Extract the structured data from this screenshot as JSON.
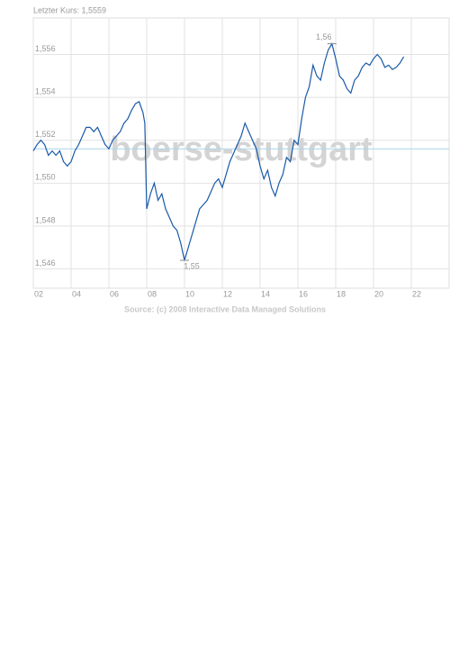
{
  "chart_data": {
    "type": "line",
    "subtitle": "Letzter Kurs: 1,5559",
    "source": "Source: (c) 2008 Interactive Data Managed Solutions",
    "watermark": "boerse-stuttgart",
    "x": [
      2.0,
      2.2,
      2.4,
      2.6,
      2.8,
      3.0,
      3.2,
      3.4,
      3.6,
      3.8,
      4.0,
      4.2,
      4.4,
      4.6,
      4.8,
      5.0,
      5.2,
      5.4,
      5.6,
      5.8,
      6.0,
      6.2,
      6.4,
      6.6,
      6.8,
      7.0,
      7.2,
      7.4,
      7.6,
      7.8,
      7.9,
      8.0,
      8.2,
      8.4,
      8.6,
      8.8,
      9.0,
      9.2,
      9.4,
      9.6,
      9.8,
      10.0,
      10.2,
      10.4,
      10.6,
      10.8,
      11.0,
      11.2,
      11.4,
      11.6,
      11.8,
      12.0,
      12.2,
      12.4,
      12.6,
      12.8,
      13.0,
      13.2,
      13.4,
      13.6,
      13.8,
      14.0,
      14.2,
      14.4,
      14.6,
      14.8,
      15.0,
      15.2,
      15.4,
      15.6,
      15.8,
      16.0,
      16.2,
      16.4,
      16.6,
      16.8,
      17.0,
      17.2,
      17.4,
      17.6,
      17.8,
      18.0,
      18.2,
      18.4,
      18.6,
      18.8,
      19.0,
      19.2,
      19.4,
      19.6,
      19.8,
      20.0,
      20.2,
      20.4,
      20.6,
      20.8,
      21.0,
      21.2,
      21.4,
      21.6
    ],
    "values": [
      1.5515,
      1.5518,
      1.552,
      1.5518,
      1.5513,
      1.5515,
      1.5513,
      1.5515,
      1.551,
      1.5508,
      1.551,
      1.5515,
      1.5518,
      1.5522,
      1.5526,
      1.5526,
      1.5524,
      1.5526,
      1.5522,
      1.5518,
      1.5516,
      1.552,
      1.5522,
      1.5524,
      1.5528,
      1.553,
      1.5534,
      1.5537,
      1.5538,
      1.5533,
      1.5528,
      1.5488,
      1.5495,
      1.55,
      1.5492,
      1.5495,
      1.5488,
      1.5484,
      1.548,
      1.5478,
      1.5472,
      1.5464,
      1.547,
      1.5476,
      1.5482,
      1.5488,
      1.549,
      1.5492,
      1.5496,
      1.55,
      1.5502,
      1.5498,
      1.5504,
      1.551,
      1.5514,
      1.5518,
      1.5522,
      1.5528,
      1.5524,
      1.552,
      1.5516,
      1.5508,
      1.5502,
      1.5506,
      1.5498,
      1.5494,
      1.55,
      1.5504,
      1.5512,
      1.551,
      1.552,
      1.5518,
      1.553,
      1.554,
      1.5545,
      1.5555,
      1.555,
      1.5548,
      1.5556,
      1.5562,
      1.5565,
      1.5558,
      1.555,
      1.5548,
      1.5544,
      1.5542,
      1.5548,
      1.555,
      1.5554,
      1.5556,
      1.5555,
      1.5558,
      1.556,
      1.5558,
      1.5554,
      1.5555,
      1.5553,
      1.5554,
      1.5556,
      1.5559
    ],
    "color": "#1a5aa8",
    "reference_line": 1.5516,
    "reference_color": "#a8d4ee",
    "annotations": [
      {
        "x": 17.8,
        "value": 1.5565,
        "label": "1,56"
      },
      {
        "x": 10.0,
        "value": 1.5464,
        "label": "1,55"
      }
    ],
    "xlim": [
      2,
      24
    ],
    "xticks": [
      {
        "value": 2,
        "label": "02"
      },
      {
        "value": 4,
        "label": "04"
      },
      {
        "value": 6,
        "label": "06"
      },
      {
        "value": 8,
        "label": "08"
      },
      {
        "value": 10,
        "label": "10"
      },
      {
        "value": 12,
        "label": "12"
      },
      {
        "value": 14,
        "label": "14"
      },
      {
        "value": 16,
        "label": "16"
      },
      {
        "value": 18,
        "label": "18"
      },
      {
        "value": 20,
        "label": "20"
      },
      {
        "value": 22,
        "label": "22"
      }
    ],
    "ylim": [
      1.5451,
      1.5577
    ],
    "yticks": [
      {
        "value": 1.546,
        "label": "1,546"
      },
      {
        "value": 1.548,
        "label": "1,548"
      },
      {
        "value": 1.55,
        "label": "1,550"
      },
      {
        "value": 1.552,
        "label": "1,552"
      },
      {
        "value": 1.554,
        "label": "1,554"
      },
      {
        "value": 1.556,
        "label": "1,556"
      }
    ],
    "grid": true
  }
}
